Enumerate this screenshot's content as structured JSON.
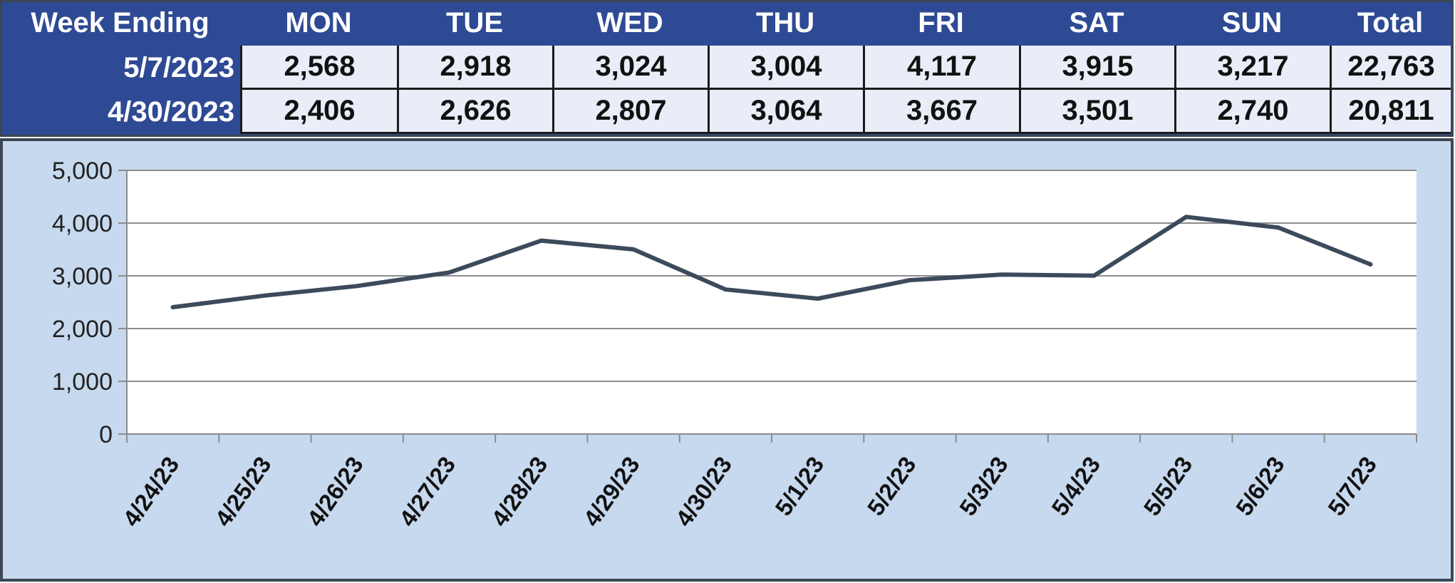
{
  "table": {
    "corner_label": "Week Ending",
    "days": [
      "MON",
      "TUE",
      "WED",
      "THU",
      "FRI",
      "SAT",
      "SUN"
    ],
    "total_label": "Total",
    "rows": [
      {
        "week": "5/7/2023",
        "values": [
          "2,568",
          "2,918",
          "3,024",
          "3,004",
          "4,117",
          "3,915",
          "3,217"
        ],
        "total": "22,763"
      },
      {
        "week": "4/30/2023",
        "values": [
          "2,406",
          "2,626",
          "2,807",
          "3,064",
          "3,667",
          "3,501",
          "2,740"
        ],
        "total": "20,811"
      }
    ]
  },
  "chart_data": {
    "type": "line",
    "title": "",
    "xlabel": "",
    "ylabel": "",
    "x": [
      "4/24/23",
      "4/25/23",
      "4/26/23",
      "4/27/23",
      "4/28/23",
      "4/29/23",
      "4/30/23",
      "5/1/23",
      "5/2/23",
      "5/3/23",
      "5/4/23",
      "5/5/23",
      "5/6/23",
      "5/7/23"
    ],
    "series": [
      {
        "values": [
          2406,
          2626,
          2807,
          3064,
          3667,
          3501,
          2740,
          2568,
          2918,
          3024,
          3004,
          4117,
          3915,
          3217
        ]
      }
    ],
    "ylim": [
      0,
      5000
    ],
    "yticks": [
      0,
      1000,
      2000,
      3000,
      4000,
      5000
    ],
    "ytick_labels": [
      "0",
      "1,000",
      "2,000",
      "3,000",
      "4,000",
      "5,000"
    ],
    "grid": "horizontal",
    "legend": "none",
    "line_color": "#3c4a5c",
    "plot_background": "#ffffff",
    "panel_background": "#c7d9ee"
  }
}
